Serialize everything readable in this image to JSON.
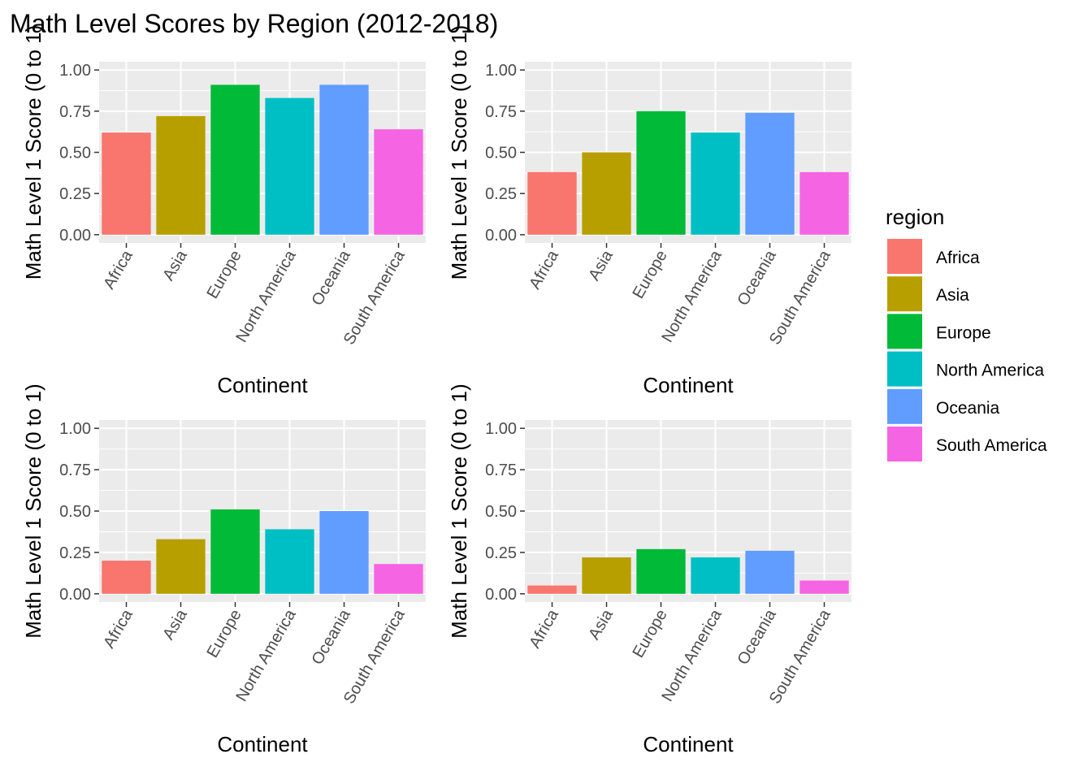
{
  "title": "Math Level Scores by Region (2012-2018)",
  "legend": {
    "title": "region",
    "entries": [
      "Africa",
      "Asia",
      "Europe",
      "North America",
      "Oceania",
      "South America"
    ],
    "placement": "right"
  },
  "colors": {
    "Africa": "#F8766D",
    "Asia": "#B79F00",
    "Europe": "#00BA38",
    "North America": "#00BFC4",
    "Oceania": "#619CFF",
    "South America": "#F564E3"
  },
  "chart_data": [
    {
      "type": "bar",
      "xlabel": "Continent",
      "ylabel": "Math Level 1 Score (0 to 1)",
      "categories": [
        "Africa",
        "Asia",
        "Europe",
        "North America",
        "Oceania",
        "South America"
      ],
      "values": [
        0.62,
        0.72,
        0.91,
        0.83,
        0.91,
        0.64
      ],
      "ylim": [
        0,
        1
      ],
      "yticks": [
        "0.00",
        "0.25",
        "0.50",
        "0.75",
        "1.00"
      ],
      "grid": true
    },
    {
      "type": "bar",
      "xlabel": "Continent",
      "ylabel": "Math Level 1 Score (0 to 1)",
      "categories": [
        "Africa",
        "Asia",
        "Europe",
        "North America",
        "Oceania",
        "South America"
      ],
      "values": [
        0.38,
        0.5,
        0.75,
        0.62,
        0.74,
        0.38
      ],
      "ylim": [
        0,
        1
      ],
      "yticks": [
        "0.00",
        "0.25",
        "0.50",
        "0.75",
        "1.00"
      ],
      "grid": true
    },
    {
      "type": "bar",
      "xlabel": "Continent",
      "ylabel": "Math Level 1 Score (0 to 1)",
      "categories": [
        "Africa",
        "Asia",
        "Europe",
        "North America",
        "Oceania",
        "South America"
      ],
      "values": [
        0.2,
        0.33,
        0.51,
        0.39,
        0.5,
        0.18
      ],
      "ylim": [
        0,
        1
      ],
      "yticks": [
        "0.00",
        "0.25",
        "0.50",
        "0.75",
        "1.00"
      ],
      "grid": true
    },
    {
      "type": "bar",
      "xlabel": "Continent",
      "ylabel": "Math Level 1 Score (0 to 1)",
      "categories": [
        "Africa",
        "Asia",
        "Europe",
        "North America",
        "Oceania",
        "South America"
      ],
      "values": [
        0.05,
        0.22,
        0.27,
        0.22,
        0.26,
        0.08
      ],
      "ylim": [
        0,
        1
      ],
      "yticks": [
        "0.00",
        "0.25",
        "0.50",
        "0.75",
        "1.00"
      ],
      "grid": true
    }
  ]
}
